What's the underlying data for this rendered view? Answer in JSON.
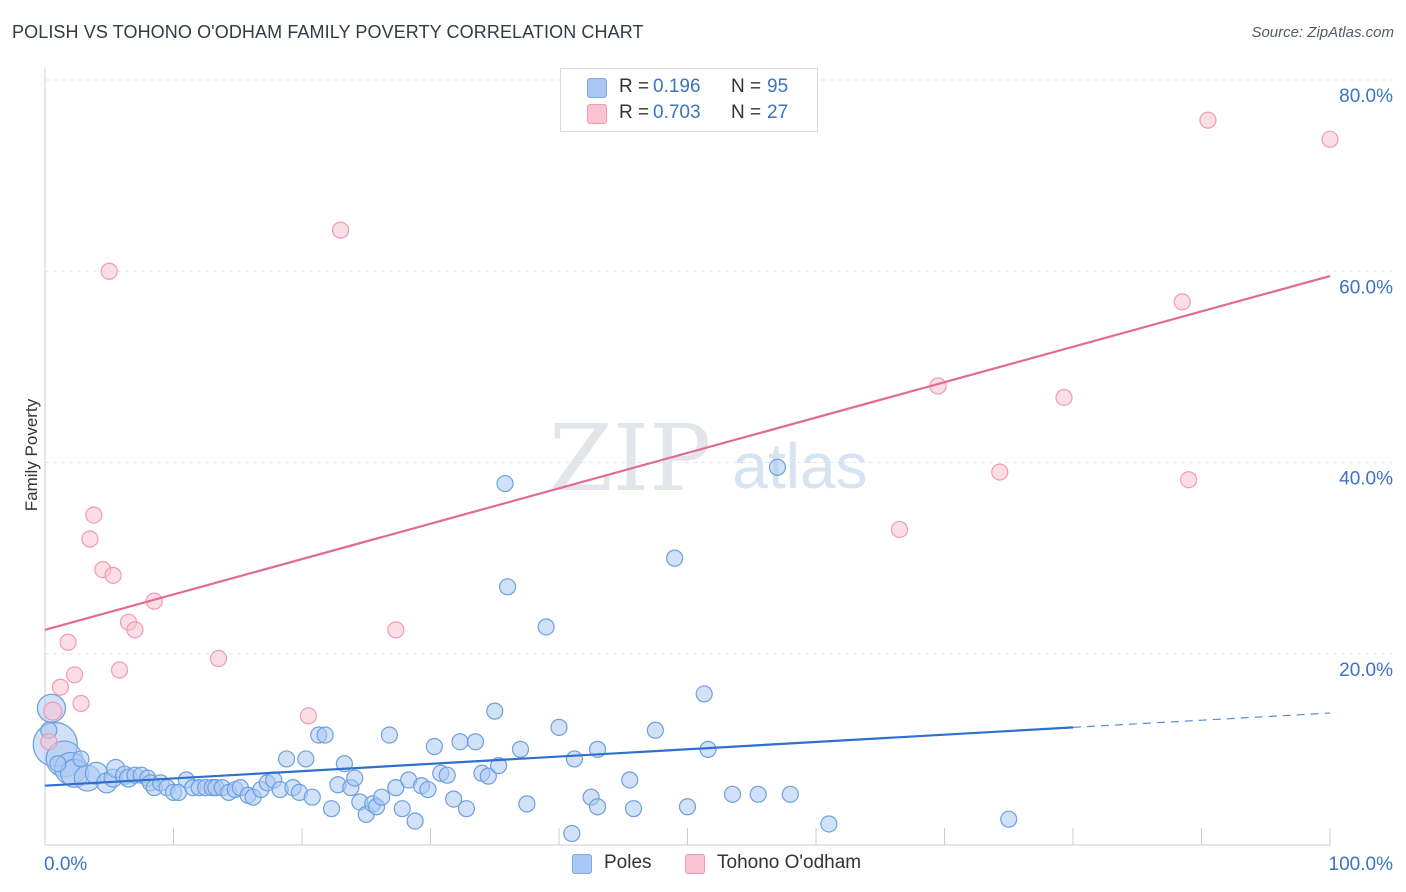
{
  "title": "POLISH VS TOHONO O'ODHAM FAMILY POVERTY CORRELATION CHART",
  "source": "Source: ZipAtlas.com",
  "watermark": {
    "zip": "ZIP",
    "atlas": "atlas"
  },
  "legend": [
    {
      "r_label": "R =",
      "r_value": "0.196",
      "n_label": "N =",
      "n_value": "95",
      "color": "#a9c8f3",
      "border": "#7aa8e8"
    },
    {
      "r_label": "R =",
      "r_value": "0.703",
      "n_label": "N =",
      "n_value": "27",
      "color": "#f9c3d2",
      "border": "#f19ab3"
    }
  ],
  "series_labels": {
    "poles": "Poles",
    "tohono": "Tohono O'odham"
  },
  "chart_data": {
    "type": "scatter",
    "xlabel": "",
    "ylabel": "Family Poverty",
    "xlim": [
      0,
      100
    ],
    "ylim": [
      0,
      80
    ],
    "x_tick_labels": [
      "0.0%",
      "100.0%"
    ],
    "y_ticks": [
      20,
      40,
      60,
      80
    ],
    "y_tick_labels": [
      "20.0%",
      "40.0%",
      "60.0%",
      "80.0%"
    ],
    "grid": true,
    "series": [
      {
        "name": "Poles",
        "color": "#a9c8f3",
        "stroke": "#6e9fe0",
        "trend_color": "#2f6fd0",
        "trend": {
          "x0": 0,
          "y0": 6.2,
          "x1": 80,
          "y1": 12.3,
          "dashed_to": 100,
          "dashed_y": 13.8
        },
        "points": [
          {
            "x": 0.5,
            "y": 14.3,
            "r": 14
          },
          {
            "x": 0.8,
            "y": 10.5,
            "r": 22
          },
          {
            "x": 1.5,
            "y": 9.0,
            "r": 18
          },
          {
            "x": 2.0,
            "y": 8.0,
            "r": 16
          },
          {
            "x": 2.3,
            "y": 7.5,
            "r": 14
          },
          {
            "x": 3.3,
            "y": 7.0,
            "r": 13
          },
          {
            "x": 4.0,
            "y": 7.5,
            "r": 11
          },
          {
            "x": 4.8,
            "y": 6.5,
            "r": 10
          },
          {
            "x": 5.3,
            "y": 7.0,
            "r": 9
          },
          {
            "x": 5.5,
            "y": 8.0,
            "r": 9
          },
          {
            "x": 6.2,
            "y": 7.3,
            "r": 9
          },
          {
            "x": 6.5,
            "y": 7.0,
            "r": 9
          },
          {
            "x": 7.0,
            "y": 7.3,
            "r": 8
          },
          {
            "x": 7.5,
            "y": 7.3,
            "r": 8
          },
          {
            "x": 8.0,
            "y": 7.0,
            "r": 8
          },
          {
            "x": 8.2,
            "y": 6.5,
            "r": 8
          },
          {
            "x": 8.5,
            "y": 6.0,
            "r": 8
          },
          {
            "x": 9.0,
            "y": 6.5,
            "r": 8
          },
          {
            "x": 9.5,
            "y": 6.0,
            "r": 8
          },
          {
            "x": 10.0,
            "y": 5.5,
            "r": 8
          },
          {
            "x": 10.4,
            "y": 5.5,
            "r": 8
          },
          {
            "x": 11.0,
            "y": 6.8,
            "r": 8
          },
          {
            "x": 11.5,
            "y": 6.0,
            "r": 8
          },
          {
            "x": 12.0,
            "y": 6.0,
            "r": 8
          },
          {
            "x": 12.5,
            "y": 6.0,
            "r": 8
          },
          {
            "x": 13.0,
            "y": 6.0,
            "r": 8
          },
          {
            "x": 13.3,
            "y": 6.0,
            "r": 8
          },
          {
            "x": 13.8,
            "y": 6.0,
            "r": 8
          },
          {
            "x": 14.3,
            "y": 5.5,
            "r": 8
          },
          {
            "x": 14.8,
            "y": 5.8,
            "r": 8
          },
          {
            "x": 15.2,
            "y": 6.0,
            "r": 8
          },
          {
            "x": 15.8,
            "y": 5.2,
            "r": 8
          },
          {
            "x": 16.2,
            "y": 5.0,
            "r": 8
          },
          {
            "x": 16.8,
            "y": 5.8,
            "r": 8
          },
          {
            "x": 17.3,
            "y": 6.5,
            "r": 8
          },
          {
            "x": 17.8,
            "y": 6.8,
            "r": 8
          },
          {
            "x": 18.3,
            "y": 5.8,
            "r": 8
          },
          {
            "x": 18.8,
            "y": 9.0,
            "r": 8
          },
          {
            "x": 19.3,
            "y": 6.0,
            "r": 8
          },
          {
            "x": 19.8,
            "y": 5.5,
            "r": 8
          },
          {
            "x": 20.3,
            "y": 9.0,
            "r": 8
          },
          {
            "x": 20.8,
            "y": 5.0,
            "r": 8
          },
          {
            "x": 21.3,
            "y": 11.5,
            "r": 8
          },
          {
            "x": 21.8,
            "y": 11.5,
            "r": 8
          },
          {
            "x": 22.3,
            "y": 3.8,
            "r": 8
          },
          {
            "x": 22.8,
            "y": 6.3,
            "r": 8
          },
          {
            "x": 23.3,
            "y": 8.5,
            "r": 8
          },
          {
            "x": 23.8,
            "y": 6.0,
            "r": 8
          },
          {
            "x": 24.1,
            "y": 7.0,
            "r": 8
          },
          {
            "x": 24.5,
            "y": 4.5,
            "r": 8
          },
          {
            "x": 25.0,
            "y": 3.2,
            "r": 8
          },
          {
            "x": 25.5,
            "y": 4.3,
            "r": 8
          },
          {
            "x": 25.8,
            "y": 4.0,
            "r": 8
          },
          {
            "x": 26.2,
            "y": 5.0,
            "r": 8
          },
          {
            "x": 26.8,
            "y": 11.5,
            "r": 8
          },
          {
            "x": 27.3,
            "y": 6.0,
            "r": 8
          },
          {
            "x": 27.8,
            "y": 3.8,
            "r": 8
          },
          {
            "x": 28.3,
            "y": 6.8,
            "r": 8
          },
          {
            "x": 28.8,
            "y": 2.5,
            "r": 8
          },
          {
            "x": 29.3,
            "y": 6.2,
            "r": 8
          },
          {
            "x": 29.8,
            "y": 5.8,
            "r": 8
          },
          {
            "x": 30.3,
            "y": 10.3,
            "r": 8
          },
          {
            "x": 30.8,
            "y": 7.5,
            "r": 8
          },
          {
            "x": 31.3,
            "y": 7.3,
            "r": 8
          },
          {
            "x": 31.8,
            "y": 4.8,
            "r": 8
          },
          {
            "x": 32.3,
            "y": 10.8,
            "r": 8
          },
          {
            "x": 32.8,
            "y": 3.8,
            "r": 8
          },
          {
            "x": 33.5,
            "y": 10.8,
            "r": 8
          },
          {
            "x": 34.0,
            "y": 7.5,
            "r": 8
          },
          {
            "x": 34.5,
            "y": 7.2,
            "r": 8
          },
          {
            "x": 35.0,
            "y": 14.0,
            "r": 8
          },
          {
            "x": 35.3,
            "y": 8.3,
            "r": 8
          },
          {
            "x": 35.8,
            "y": 37.8,
            "r": 8
          },
          {
            "x": 36.0,
            "y": 27.0,
            "r": 8
          },
          {
            "x": 37.0,
            "y": 10.0,
            "r": 8
          },
          {
            "x": 37.5,
            "y": 4.3,
            "r": 8
          },
          {
            "x": 39.0,
            "y": 22.8,
            "r": 8
          },
          {
            "x": 40.0,
            "y": 12.3,
            "r": 8
          },
          {
            "x": 41.0,
            "y": 1.2,
            "r": 8
          },
          {
            "x": 41.2,
            "y": 9.0,
            "r": 8
          },
          {
            "x": 42.5,
            "y": 5.0,
            "r": 8
          },
          {
            "x": 43.0,
            "y": 10.0,
            "r": 8
          },
          {
            "x": 43.0,
            "y": 4.0,
            "r": 8
          },
          {
            "x": 45.5,
            "y": 6.8,
            "r": 8
          },
          {
            "x": 45.8,
            "y": 3.8,
            "r": 8
          },
          {
            "x": 47.5,
            "y": 12.0,
            "r": 8
          },
          {
            "x": 49.0,
            "y": 30.0,
            "r": 8
          },
          {
            "x": 50.0,
            "y": 4.0,
            "r": 8
          },
          {
            "x": 51.3,
            "y": 15.8,
            "r": 8
          },
          {
            "x": 51.6,
            "y": 10.0,
            "r": 8
          },
          {
            "x": 53.5,
            "y": 5.3,
            "r": 8
          },
          {
            "x": 55.5,
            "y": 5.3,
            "r": 8
          },
          {
            "x": 57.0,
            "y": 39.5,
            "r": 8
          },
          {
            "x": 58.0,
            "y": 5.3,
            "r": 8
          },
          {
            "x": 61.0,
            "y": 2.2,
            "r": 8
          },
          {
            "x": 75.0,
            "y": 2.7,
            "r": 8
          },
          {
            "x": 0.3,
            "y": 12.0,
            "r": 8
          },
          {
            "x": 1.0,
            "y": 8.5,
            "r": 8
          },
          {
            "x": 2.8,
            "y": 9.0,
            "r": 8
          }
        ]
      },
      {
        "name": "Tohono O'odham",
        "color": "#f9c3d2",
        "stroke": "#f19ab3",
        "trend_color": "#e36a92",
        "trend": {
          "x0": 0,
          "y0": 22.5,
          "x1": 100,
          "y1": 59.5
        },
        "points": [
          {
            "x": 0.6,
            "y": 14.0,
            "r": 9
          },
          {
            "x": 1.2,
            "y": 16.5,
            "r": 8
          },
          {
            "x": 1.8,
            "y": 21.2,
            "r": 8
          },
          {
            "x": 2.3,
            "y": 17.8,
            "r": 8
          },
          {
            "x": 2.8,
            "y": 14.8,
            "r": 8
          },
          {
            "x": 3.5,
            "y": 32.0,
            "r": 8
          },
          {
            "x": 3.8,
            "y": 34.5,
            "r": 8
          },
          {
            "x": 4.5,
            "y": 28.8,
            "r": 8
          },
          {
            "x": 5.0,
            "y": 60.0,
            "r": 8
          },
          {
            "x": 5.3,
            "y": 28.2,
            "r": 8
          },
          {
            "x": 5.8,
            "y": 18.3,
            "r": 8
          },
          {
            "x": 6.5,
            "y": 23.3,
            "r": 8
          },
          {
            "x": 7.0,
            "y": 22.5,
            "r": 8
          },
          {
            "x": 8.5,
            "y": 25.5,
            "r": 8
          },
          {
            "x": 13.5,
            "y": 19.5,
            "r": 8
          },
          {
            "x": 20.5,
            "y": 13.5,
            "r": 8
          },
          {
            "x": 23.0,
            "y": 64.3,
            "r": 8
          },
          {
            "x": 27.3,
            "y": 22.5,
            "r": 8
          },
          {
            "x": 66.5,
            "y": 33.0,
            "r": 8
          },
          {
            "x": 69.5,
            "y": 48.0,
            "r": 8
          },
          {
            "x": 74.3,
            "y": 39.0,
            "r": 8
          },
          {
            "x": 79.3,
            "y": 46.8,
            "r": 8
          },
          {
            "x": 88.5,
            "y": 56.8,
            "r": 8
          },
          {
            "x": 89.0,
            "y": 38.2,
            "r": 8
          },
          {
            "x": 90.5,
            "y": 75.8,
            "r": 8
          },
          {
            "x": 100.0,
            "y": 73.8,
            "r": 8
          },
          {
            "x": 0.3,
            "y": 10.8,
            "r": 8
          }
        ]
      }
    ]
  }
}
